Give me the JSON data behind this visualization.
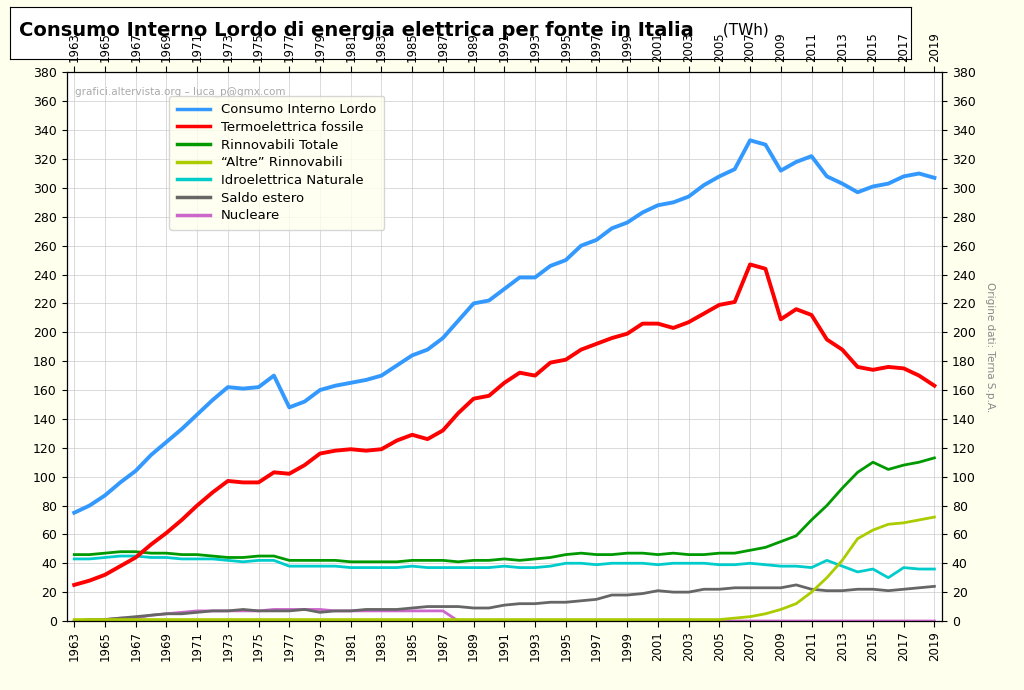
{
  "title_main": "Consumo Interno Lordo di energia elettrica per fonte in Italia",
  "title_unit": " (TWh)",
  "watermark": "grafici.altervista.org – luca_p@gmx.com",
  "right_label": "Origine dati: Terna S.p.A.",
  "years": [
    1963,
    1964,
    1965,
    1966,
    1967,
    1968,
    1969,
    1970,
    1971,
    1972,
    1973,
    1974,
    1975,
    1976,
    1977,
    1978,
    1979,
    1980,
    1981,
    1982,
    1983,
    1984,
    1985,
    1986,
    1987,
    1988,
    1989,
    1990,
    1991,
    1992,
    1993,
    1994,
    1995,
    1996,
    1997,
    1998,
    1999,
    2000,
    2001,
    2002,
    2003,
    2004,
    2005,
    2006,
    2007,
    2008,
    2009,
    2010,
    2011,
    2012,
    2013,
    2014,
    2015,
    2016,
    2017,
    2018,
    2019
  ],
  "consumo_interno_lordo": [
    75,
    80,
    87,
    96,
    104,
    115,
    124,
    133,
    143,
    153,
    162,
    161,
    162,
    170,
    148,
    152,
    160,
    163,
    165,
    167,
    170,
    177,
    184,
    188,
    196,
    208,
    220,
    222,
    230,
    238,
    238,
    246,
    250,
    260,
    264,
    272,
    276,
    283,
    288,
    290,
    294,
    302,
    308,
    313,
    333,
    330,
    312,
    318,
    322,
    308,
    303,
    297,
    301,
    303,
    308,
    310,
    307
  ],
  "termoelettrica_fossile": [
    25,
    28,
    32,
    38,
    44,
    53,
    61,
    70,
    80,
    89,
    97,
    96,
    96,
    103,
    102,
    108,
    116,
    118,
    119,
    118,
    119,
    125,
    129,
    126,
    132,
    144,
    154,
    156,
    165,
    172,
    170,
    179,
    181,
    188,
    192,
    196,
    199,
    206,
    206,
    203,
    207,
    213,
    219,
    221,
    247,
    244,
    209,
    216,
    212,
    195,
    188,
    176,
    174,
    176,
    175,
    170,
    163
  ],
  "rinnovabili_totale": [
    46,
    46,
    47,
    48,
    48,
    47,
    47,
    46,
    46,
    45,
    44,
    44,
    45,
    45,
    42,
    42,
    42,
    42,
    41,
    41,
    41,
    41,
    42,
    42,
    42,
    41,
    42,
    42,
    43,
    42,
    43,
    44,
    46,
    47,
    46,
    46,
    47,
    47,
    46,
    47,
    46,
    46,
    47,
    47,
    49,
    51,
    55,
    59,
    70,
    80,
    92,
    103,
    110,
    105,
    108,
    110,
    113
  ],
  "altre_rinnovabili": [
    1,
    1,
    1,
    1,
    1,
    1,
    1,
    1,
    1,
    1,
    1,
    1,
    1,
    1,
    1,
    1,
    1,
    1,
    1,
    1,
    1,
    1,
    1,
    1,
    1,
    1,
    1,
    1,
    1,
    1,
    1,
    1,
    1,
    1,
    1,
    1,
    1,
    1,
    1,
    1,
    1,
    1,
    1,
    2,
    3,
    5,
    8,
    12,
    20,
    30,
    42,
    57,
    63,
    67,
    68,
    70,
    72
  ],
  "idroelettrica_naturale": [
    43,
    43,
    44,
    45,
    45,
    44,
    44,
    43,
    43,
    43,
    42,
    41,
    42,
    42,
    38,
    38,
    38,
    38,
    37,
    37,
    37,
    37,
    38,
    37,
    37,
    37,
    37,
    37,
    38,
    37,
    37,
    38,
    40,
    40,
    39,
    40,
    40,
    40,
    39,
    40,
    40,
    40,
    39,
    39,
    40,
    39,
    38,
    38,
    37,
    42,
    38,
    34,
    36,
    30,
    37,
    36,
    36
  ],
  "saldo_estero": [
    0,
    1,
    1,
    2,
    3,
    4,
    5,
    5,
    6,
    7,
    7,
    8,
    7,
    7,
    7,
    8,
    6,
    7,
    7,
    8,
    8,
    8,
    9,
    10,
    10,
    10,
    9,
    9,
    11,
    12,
    12,
    13,
    13,
    14,
    15,
    18,
    18,
    19,
    21,
    20,
    20,
    22,
    22,
    23,
    23,
    23,
    23,
    25,
    22,
    21,
    21,
    22,
    22,
    21,
    22,
    23,
    24
  ],
  "nucleare": [
    0,
    0,
    1,
    2,
    2,
    4,
    5,
    6,
    7,
    7,
    7,
    7,
    7,
    8,
    8,
    8,
    8,
    7,
    7,
    7,
    7,
    7,
    7,
    7,
    7,
    0,
    0,
    0,
    0,
    0,
    0,
    0,
    0,
    0,
    0,
    0,
    0,
    0,
    0,
    0,
    0,
    0,
    0,
    0,
    0,
    0,
    0,
    0,
    0,
    0,
    0,
    0,
    0,
    0,
    0,
    0,
    0
  ],
  "colors": {
    "consumo_interno_lordo": "#3399ff",
    "termoelettrica_fossile": "#ff0000",
    "rinnovabili_totale": "#009900",
    "altre_rinnovabili": "#aacc00",
    "idroelettrica_naturale": "#00cccc",
    "saldo_estero": "#666666",
    "nucleare": "#cc66cc"
  },
  "legend_labels": [
    "Consumo Interno Lordo",
    "Termoelettrica fossile",
    "Rinnovabili Totale",
    "“Altre” Rinnovabili",
    "Idroelettrica Naturale",
    "Saldo estero",
    "Nucleare"
  ],
  "ylim": [
    0,
    380
  ],
  "yticks": [
    0,
    20,
    40,
    60,
    80,
    100,
    120,
    140,
    160,
    180,
    200,
    220,
    240,
    260,
    280,
    300,
    320,
    340,
    360,
    380
  ],
  "background_color": "#ffffee",
  "plot_background": "#ffffff",
  "grid_color": "#cccccc",
  "linewidth": 2.0
}
